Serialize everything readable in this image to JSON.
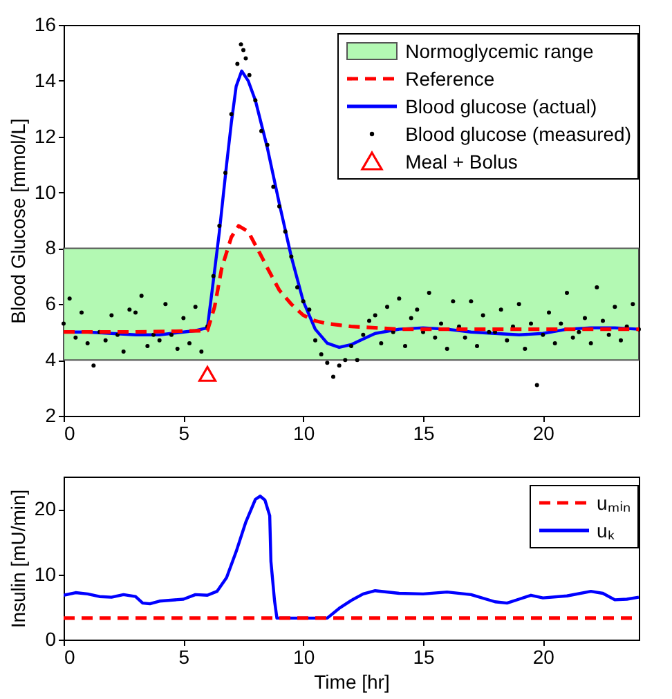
{
  "chart_data": [
    {
      "type": "line",
      "ylabel": "Blood Glucose [mmol/L]",
      "xlim": [
        0,
        24
      ],
      "xticks": [
        0,
        5,
        10,
        15,
        20
      ],
      "ylim": [
        2,
        16
      ],
      "yticks": [
        2,
        4,
        6,
        8,
        10,
        12,
        14,
        16
      ],
      "grid": false,
      "legend": "top right",
      "bands": [
        {
          "axis": "y",
          "from": 4,
          "to": 8,
          "label": "Normoglycemic range",
          "color": "#b3f9b3"
        }
      ],
      "series": [
        {
          "name": "Reference",
          "type": "line",
          "line_style": "dashed",
          "color": "#ff0000",
          "x": [
            0,
            3,
            6,
            6.3,
            6.6,
            7,
            7.3,
            7.7,
            8.2,
            8.5,
            9,
            9.5,
            10,
            10.5,
            11,
            12,
            13,
            14,
            16,
            18,
            20,
            22,
            24
          ],
          "values": [
            5.0,
            5.0,
            5.05,
            5.9,
            7.3,
            8.4,
            8.8,
            8.6,
            7.8,
            7.3,
            6.5,
            6.0,
            5.6,
            5.4,
            5.3,
            5.2,
            5.15,
            5.1,
            5.1,
            5.1,
            5.1,
            5.1,
            5.1
          ]
        },
        {
          "name": "Blood glucose (actual)",
          "type": "line",
          "color": "#0000ff",
          "x": [
            0,
            1,
            2,
            3,
            4,
            5,
            5.5,
            6,
            6.2,
            6.5,
            6.8,
            7,
            7.2,
            7.43,
            7.7,
            8,
            8.5,
            9,
            9.5,
            10,
            10.5,
            11,
            11.5,
            12,
            12.5,
            13,
            14,
            15,
            16,
            17,
            18,
            19,
            20,
            21,
            22,
            23,
            24
          ],
          "values": [
            5.0,
            5.0,
            4.95,
            4.9,
            4.9,
            5.0,
            5.05,
            5.15,
            6.5,
            8.6,
            11.0,
            12.5,
            13.8,
            14.35,
            14.0,
            13.3,
            11.6,
            9.6,
            7.7,
            6.1,
            5.1,
            4.6,
            4.45,
            4.55,
            4.75,
            4.95,
            5.1,
            5.15,
            5.1,
            5.0,
            4.95,
            4.9,
            4.95,
            5.1,
            5.15,
            5.15,
            5.1
          ]
        },
        {
          "name": "Blood glucose (measured)",
          "type": "scatter",
          "marker": "circle",
          "color": "#000000",
          "x": [
            0,
            0.25,
            0.5,
            0.75,
            1,
            1.25,
            1.5,
            1.75,
            2,
            2.25,
            2.5,
            2.75,
            3,
            3.25,
            3.5,
            3.75,
            4,
            4.25,
            4.5,
            4.75,
            5,
            5.25,
            5.5,
            5.75,
            6,
            6.25,
            6.5,
            6.75,
            7,
            7.25,
            7.4,
            7.5,
            7.6,
            7.75,
            8,
            8.25,
            8.5,
            8.75,
            9,
            9.25,
            9.5,
            9.75,
            10,
            10.25,
            10.5,
            10.75,
            11,
            11.25,
            11.5,
            11.75,
            12,
            12.25,
            12.5,
            12.75,
            13,
            13.25,
            13.5,
            13.75,
            14,
            14.25,
            14.5,
            14.75,
            15,
            15.25,
            15.5,
            15.75,
            16,
            16.25,
            16.5,
            16.75,
            17,
            17.25,
            17.5,
            17.75,
            18,
            18.25,
            18.5,
            18.75,
            19,
            19.25,
            19.5,
            19.75,
            20,
            20.25,
            20.5,
            20.75,
            21,
            21.25,
            21.5,
            21.75,
            22,
            22.25,
            22.5,
            22.75,
            23,
            23.25,
            23.5,
            23.75,
            24
          ],
          "values": [
            5.3,
            6.2,
            4.8,
            5.7,
            4.6,
            3.8,
            5.0,
            4.7,
            5.6,
            4.9,
            4.3,
            5.8,
            5.7,
            6.3,
            4.5,
            4.9,
            4.7,
            6.0,
            4.9,
            4.4,
            5.5,
            4.6,
            5.9,
            4.3,
            5.2,
            7.0,
            8.8,
            10.7,
            12.8,
            14.6,
            15.3,
            15.1,
            14.8,
            14.2,
            13.3,
            12.2,
            11.7,
            10.2,
            9.5,
            8.6,
            7.7,
            6.6,
            6.1,
            5.8,
            4.7,
            4.2,
            3.9,
            3.4,
            3.8,
            4.0,
            4.5,
            4.0,
            4.9,
            5.4,
            5.6,
            4.6,
            5.9,
            5.0,
            6.2,
            4.5,
            5.5,
            5.8,
            5.0,
            6.4,
            4.8,
            5.3,
            4.4,
            6.1,
            5.2,
            4.8,
            6.1,
            4.5,
            5.6,
            5.0,
            5.0,
            5.8,
            4.7,
            5.2,
            6.0,
            4.4,
            5.3,
            3.1,
            4.9,
            5.7,
            4.6,
            5.3,
            6.4,
            4.8,
            5.0,
            5.5,
            4.6,
            6.6,
            5.4,
            4.9,
            5.9,
            4.7,
            5.2,
            6.0,
            5.1
          ]
        },
        {
          "name": "Meal + Bolus",
          "type": "scatter",
          "marker": "triangle",
          "color": "#ff0000",
          "x": [
            6
          ],
          "values": [
            3.5
          ]
        }
      ]
    },
    {
      "type": "line",
      "xlabel": "Time [hr]",
      "ylabel": "Insulin [mU/min]",
      "xlim": [
        0,
        24
      ],
      "xticks": [
        0,
        5,
        10,
        15,
        20
      ],
      "ylim": [
        0,
        25
      ],
      "yticks": [
        0,
        10,
        20
      ],
      "grid": false,
      "legend": "top right",
      "series": [
        {
          "name": "uₘᵢₙ",
          "type": "line",
          "line_style": "dashed",
          "color": "#ff0000",
          "x": [
            0,
            24
          ],
          "values": [
            3.3,
            3.3
          ]
        },
        {
          "name": "uₖ",
          "type": "line",
          "color": "#0000ff",
          "x": [
            0,
            0.5,
            1,
            1.5,
            2,
            2.5,
            3,
            3.3,
            3.6,
            4,
            5,
            5.5,
            6,
            6.4,
            6.8,
            7.2,
            7.6,
            8,
            8.2,
            8.4,
            8.6,
            8.65,
            8.8,
            8.9,
            9.5,
            10,
            11,
            11.5,
            12,
            12.5,
            13,
            14,
            15,
            16,
            17,
            18,
            18.5,
            19,
            19.5,
            20,
            21,
            22,
            22.5,
            23,
            23.5,
            24
          ],
          "values": [
            6.8,
            7.2,
            7.0,
            6.6,
            6.5,
            6.9,
            6.6,
            5.6,
            5.5,
            5.9,
            6.2,
            6.9,
            6.8,
            7.4,
            9.5,
            13.5,
            18,
            21.5,
            22,
            21.4,
            19,
            12,
            6,
            3.3,
            3.3,
            3.3,
            3.3,
            4.8,
            6,
            7,
            7.5,
            7.1,
            7.0,
            7.3,
            6.9,
            5.8,
            5.6,
            6.2,
            6.8,
            6.4,
            6.7,
            7.4,
            7.1,
            6.1,
            6.2,
            6.5
          ]
        }
      ]
    }
  ]
}
